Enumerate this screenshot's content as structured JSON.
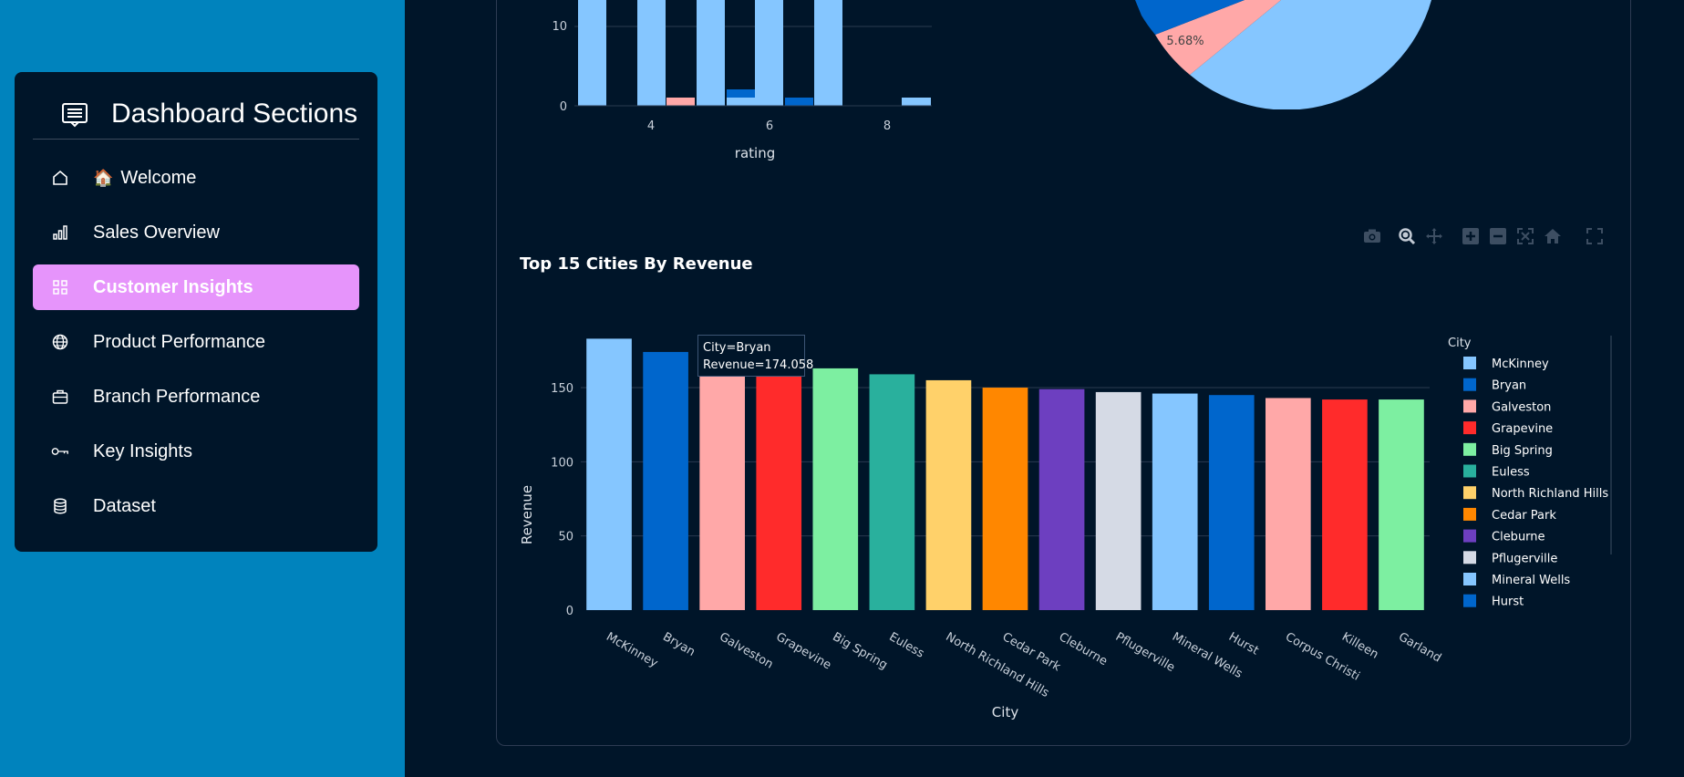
{
  "sidebar": {
    "title": "Dashboard Sections",
    "items": [
      {
        "icon": "house-icon",
        "emoji": "🏠",
        "label": "Welcome",
        "active": false
      },
      {
        "icon": "bar-chart-icon",
        "emoji": "",
        "label": "Sales Overview",
        "active": false
      },
      {
        "icon": "grid-icon",
        "emoji": "",
        "label": "Customer Insights",
        "active": true
      },
      {
        "icon": "globe-icon",
        "emoji": "",
        "label": "Product Performance",
        "active": false
      },
      {
        "icon": "briefcase-icon",
        "emoji": "",
        "label": "Branch Performance",
        "active": false
      },
      {
        "icon": "key-icon",
        "emoji": "",
        "label": "Key Insights",
        "active": false
      },
      {
        "icon": "database-icon",
        "emoji": "",
        "label": "Dataset",
        "active": false
      }
    ],
    "accent_color": "#E694FB",
    "background_color": "#0083BD"
  },
  "modebar": {
    "buttons": [
      "camera-icon",
      "zoom-icon",
      "pan-icon",
      "zoom-in-icon",
      "zoom-out-icon",
      "autoscale-icon",
      "reset-home-icon",
      "fullscreen-icon"
    ]
  },
  "top_histogram": {
    "xlabel": "rating",
    "ytick_labels": [
      "0",
      "10"
    ],
    "xtick_labels": [
      "4",
      "6",
      "8"
    ],
    "colors": [
      "#85C6FF",
      "#FFA8A8",
      "#0066CC"
    ]
  },
  "top_pie": {
    "visible_label": "5.68%",
    "slice_colors": [
      "#85C6FF",
      "#FFA8A8",
      "#0066CC"
    ]
  },
  "tooltip": {
    "line1": "City=Bryan",
    "line2": "Revenue=174.058"
  },
  "chart_data": {
    "type": "bar",
    "title": "Top 15 Cities By Revenue",
    "xlabel": "City",
    "ylabel": "Revenue",
    "ylim": [
      0,
      190
    ],
    "yticks": [
      0,
      50,
      100,
      150
    ],
    "grid": true,
    "legend_title": "City",
    "legend_placement": "right",
    "categories": [
      "McKinney",
      "Bryan",
      "Galveston",
      "Grapevine",
      "Big Spring",
      "Euless",
      "North Richland Hills",
      "Cedar Park",
      "Cleburne",
      "Pflugerville",
      "Mineral Wells",
      "Hurst",
      "Corpus Christi",
      "Killeen",
      "Garland"
    ],
    "values": [
      183,
      174.058,
      165,
      163,
      163,
      159,
      155,
      150,
      149,
      147,
      146,
      145,
      143,
      142,
      142
    ],
    "colors": [
      "#85C6FF",
      "#0066CC",
      "#FFA8A8",
      "#FF2B2B",
      "#7DEFA1",
      "#29B09D",
      "#FFD16A",
      "#FF8700",
      "#6D3FC0",
      "#D5DAE5",
      "#85C6FF",
      "#0066CC",
      "#FFA8A8",
      "#FF2B2B",
      "#7DEFA1"
    ],
    "legend_visible": [
      "McKinney",
      "Bryan",
      "Galveston",
      "Grapevine",
      "Big Spring",
      "Euless",
      "North Richland Hills",
      "Cedar Park",
      "Cleburne",
      "Pflugerville",
      "Mineral Wells",
      "Hurst"
    ]
  }
}
